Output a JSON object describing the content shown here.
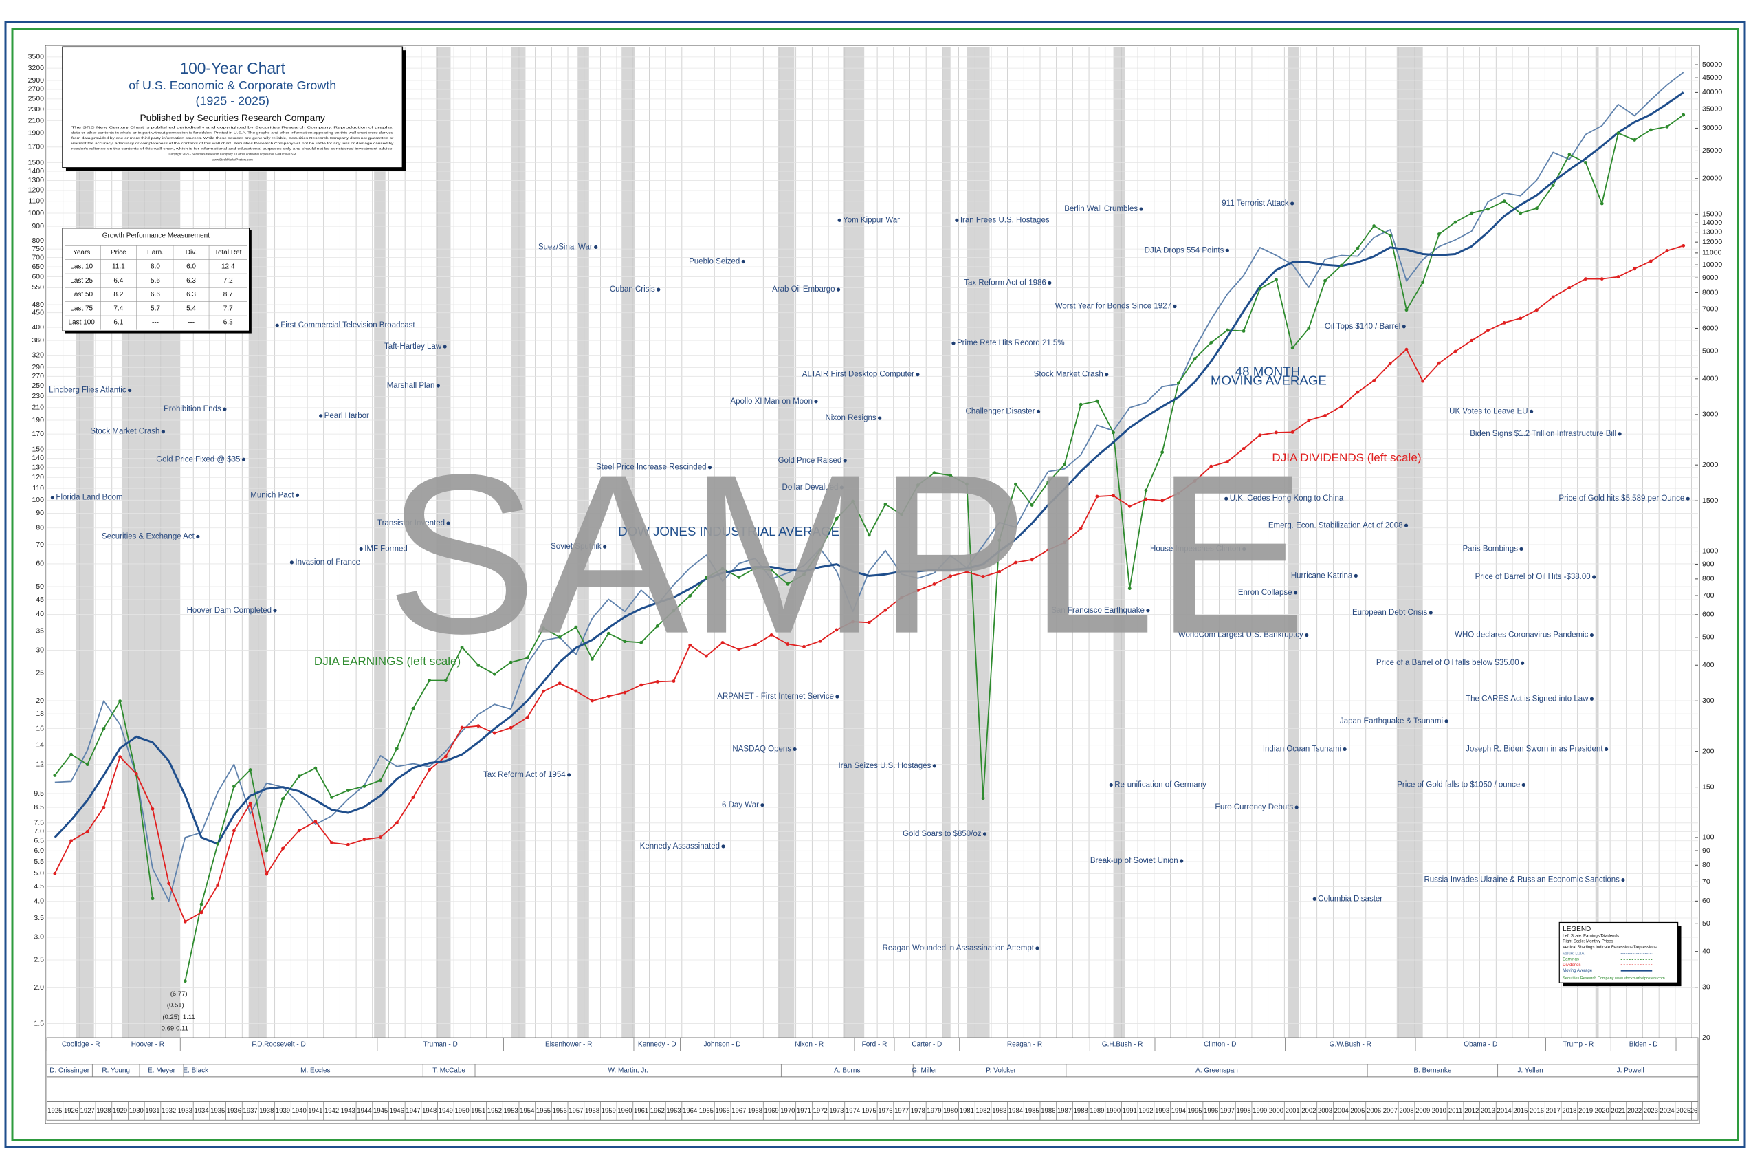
{
  "chart_data": {
    "type": "line",
    "title": "100-Year Chart",
    "subtitle": "of U.S. Economic & Corporate Growth",
    "period": "(1925 - 2025)",
    "publisher": "Published by Securities Research Company",
    "disclaimer": [
      "The SRC New Century Chart is published periodically and copyrighted by Securities Research Company. Reproduction of graphs,",
      "data or other contents in whole or in part without permission is forbidden. Printed in U.S.A. The graphs and other information appearing on this wall chart were derived",
      "from data provided by one or more third party information sources. While these sources are generally reliable, Securities Research Company does not guarantee or",
      "warrant the accuracy, adequacy or completeness of the contents of this wall chart. Securities Research Company will not be liable for any loss or damage caused by",
      "reader's reliance on the contents of this wall chart, which is for informational and educational purposes only and should not be considered investment advice.",
      "Copyright 2025 - Securities Research Company. To order additional copies call 1-800-509-0534",
      "www.StockMarketPosters.com"
    ],
    "watermark": "SAMPLE",
    "x": [
      1925,
      1926,
      1927,
      1928,
      1929,
      1930,
      1931,
      1932,
      1933,
      1934,
      1935,
      1936,
      1937,
      1938,
      1939,
      1940,
      1941,
      1942,
      1943,
      1944,
      1945,
      1946,
      1947,
      1948,
      1949,
      1950,
      1951,
      1952,
      1953,
      1954,
      1955,
      1956,
      1957,
      1958,
      1959,
      1960,
      1961,
      1962,
      1963,
      1964,
      1965,
      1966,
      1967,
      1968,
      1969,
      1970,
      1971,
      1972,
      1973,
      1974,
      1975,
      1976,
      1977,
      1978,
      1979,
      1980,
      1981,
      1982,
      1983,
      1984,
      1985,
      1986,
      1987,
      1988,
      1989,
      1990,
      1991,
      1992,
      1993,
      1994,
      1995,
      1996,
      1997,
      1998,
      1999,
      2000,
      2001,
      2002,
      2003,
      2004,
      2005,
      2006,
      2007,
      2008,
      2009,
      2010,
      2011,
      2012,
      2013,
      2014,
      2015,
      2016,
      2017,
      2018,
      2019,
      2020,
      2021,
      2022,
      2023,
      2024,
      2025
    ],
    "series": [
      {
        "name": "Value: DJIA",
        "color": "#5f82ad",
        "axis": "y2",
        "values": [
          156,
          157,
          202,
          300,
          248,
          165,
          78,
          60,
          100,
          104,
          144,
          180,
          121,
          155,
          150,
          131,
          111,
          119,
          136,
          152,
          193,
          177,
          181,
          177,
          200,
          235,
          269,
          292,
          281,
          404,
          488,
          500,
          436,
          584,
          679,
          616,
          731,
          652,
          763,
          874,
          969,
          786,
          905,
          944,
          800,
          839,
          890,
          1020,
          851,
          616,
          852,
          1005,
          831,
          805,
          839,
          964,
          875,
          1047,
          1259,
          1212,
          1547,
          1896,
          1939,
          2169,
          2753,
          2634,
          3169,
          3301,
          3754,
          3834,
          5117,
          6448,
          7908,
          9181,
          11497,
          10787,
          10021,
          8342,
          10454,
          10783,
          10718,
          12463,
          13265,
          8776,
          10428,
          11578,
          12218,
          13104,
          16577,
          17823,
          17425,
          19763,
          24719,
          23327,
          28538,
          30606,
          36338,
          33147,
          37690,
          42544,
          47000
        ]
      },
      {
        "name": "Earnings",
        "color": "#2e8b2e",
        "values": [
          11,
          13,
          12,
          16,
          19.94,
          11.02,
          4.09,
          null,
          2.11,
          3.91,
          6.34,
          10.07,
          11.49,
          6.01,
          9.11,
          10.92,
          11.64,
          9.22,
          9.74,
          10.07,
          10.56,
          13.63,
          18.8,
          23.54,
          23.54,
          30.7,
          26.59,
          24.78,
          27.23,
          28.18,
          35.78,
          33.34,
          36.08,
          27.95,
          34.31,
          32.21,
          31.91,
          36.43,
          41.21,
          46.43,
          53.67,
          57.68,
          53.87,
          57.89,
          57.02,
          51.02,
          55.09,
          67.11,
          86.17,
          99.04,
          75.66,
          96.72,
          89.1,
          112.79,
          124.46,
          121.86,
          113.71,
          9.15,
          72.45,
          113.58,
          96.11,
          115.59,
          133.05,
          215.46,
          221.48,
          172.05,
          49.27,
          108.25,
          146.84,
          256.13,
          311.02,
          353.88,
          391.29,
          388.42,
          545.29,
          586.3,
          339.56,
          397.11,
          581.46,
          657.23,
          754.21,
          902.67,
          836.19,
          460,
          574,
          845,
          930,
          1000,
          1033,
          1100,
          1000,
          1040,
          1250,
          1600,
          1500,
          1080,
          1900,
          1800,
          1950,
          2000,
          2200
        ]
      },
      {
        "name": "Dividends",
        "color": "#e02020",
        "values": [
          5,
          6.5,
          7,
          8.5,
          12.75,
          11.13,
          8.4,
          4.62,
          3.4,
          3.66,
          4.55,
          7.05,
          8.78,
          4.98,
          6.11,
          7.06,
          7.59,
          6.4,
          6.3,
          6.57,
          6.69,
          7.5,
          9.21,
          11.5,
          12.79,
          16.13,
          16.34,
          15.43,
          16.11,
          17.47,
          21.58,
          22.99,
          21.61,
          20,
          20.74,
          21.36,
          22.71,
          23.3,
          23.41,
          31.24,
          28.61,
          31.89,
          30.19,
          31.34,
          33.9,
          31.53,
          30.86,
          32.27,
          35.33,
          37.72,
          37.46,
          41.4,
          45.84,
          48.52,
          50.98,
          54.36,
          56.22,
          54.14,
          56.33,
          60.63,
          62.03,
          67.04,
          71.2,
          79.53,
          103,
          103.7,
          95.18,
          100.72,
          99.66,
          105.66,
          116.56,
          131.14,
          136.1,
          151.13,
          168.52,
          172.08,
          172.61,
          189.68,
          197,
          212,
          238,
          261,
          299,
          335,
          260,
          300,
          330,
          360,
          390,
          415,
          430,
          460,
          510,
          550,
          590,
          590,
          600,
          640,
          680,
          740,
          770
        ]
      },
      {
        "name": "Moving Average",
        "color": "#1f4e8c",
        "axis": "y2",
        "values": [
          100,
          115,
          135,
          165,
          205,
          225,
          215,
          185,
          140,
          100,
          95,
          120,
          140,
          148,
          150,
          145,
          135,
          125,
          122,
          128,
          140,
          160,
          175,
          182,
          185,
          195,
          215,
          240,
          265,
          300,
          350,
          410,
          460,
          490,
          540,
          590,
          630,
          660,
          690,
          740,
          800,
          840,
          860,
          880,
          880,
          860,
          850,
          880,
          900,
          850,
          820,
          830,
          850,
          850,
          860,
          860,
          870,
          900,
          1000,
          1100,
          1250,
          1450,
          1650,
          1900,
          2150,
          2400,
          2700,
          2950,
          3200,
          3450,
          3900,
          4600,
          5600,
          6900,
          8400,
          9600,
          10200,
          10200,
          10000,
          9900,
          10200,
          10700,
          11500,
          11300,
          10900,
          10800,
          10900,
          11600,
          13000,
          14800,
          16200,
          17500,
          19500,
          21500,
          23500,
          26000,
          29000,
          31500,
          33500,
          36500,
          40000
        ]
      }
    ],
    "log_scale": true,
    "grid": true,
    "xlim": [
      1925,
      2026.4
    ],
    "ylim": [
      1.34,
      3800
    ],
    "y2lim": [
      20,
      57750
    ],
    "yticks": [
      1.5,
      {
        "value": 2,
        "label": "2.0"
      },
      2.5,
      {
        "value": 3,
        "label": "3.0"
      },
      3.5,
      {
        "value": 4,
        "label": "4.0"
      },
      4.5,
      {
        "value": 5,
        "label": "5.0"
      },
      5.5,
      {
        "value": 6,
        "label": "6.0"
      },
      6.5,
      {
        "value": 7,
        "label": "7.0"
      },
      7.5,
      8.5,
      9.5,
      12,
      14,
      16,
      18,
      20,
      25,
      30,
      35,
      40,
      45,
      50,
      60,
      70,
      80,
      90,
      100,
      110,
      120,
      130,
      140,
      150,
      170,
      190,
      210,
      230,
      250,
      270,
      290,
      320,
      360,
      400,
      450,
      480,
      550,
      600,
      650,
      700,
      750,
      800,
      900,
      1000,
      1100,
      1200,
      1300,
      1400,
      1500,
      1700,
      1900,
      2100,
      2300,
      2500,
      2700,
      2900,
      3200,
      3500
    ],
    "y2ticks": [
      20,
      30,
      40,
      50,
      60,
      70,
      80,
      90,
      100,
      150,
      200,
      300,
      400,
      500,
      600,
      700,
      800,
      900,
      1000,
      1500,
      2000,
      3000,
      4000,
      5000,
      6000,
      7000,
      8000,
      9000,
      10000,
      11000,
      12000,
      13000,
      14000,
      15000,
      20000,
      25000,
      30000,
      35000,
      40000,
      45000,
      50000
    ],
    "xticks": [
      1925,
      1926,
      1927,
      1928,
      1929,
      1930,
      1931,
      1932,
      1933,
      1934,
      1935,
      1936,
      1937,
      1938,
      1939,
      1940,
      1941,
      1942,
      1943,
      1944,
      1945,
      1946,
      1947,
      1948,
      1949,
      1950,
      1951,
      1952,
      1953,
      1954,
      1955,
      1956,
      1957,
      1958,
      1959,
      1960,
      1961,
      1962,
      1963,
      1964,
      1965,
      1966,
      1967,
      1968,
      1969,
      1970,
      1971,
      1972,
      1973,
      1974,
      1975,
      1976,
      1977,
      1978,
      1979,
      1980,
      1981,
      1982,
      1983,
      1984,
      1985,
      1986,
      1987,
      1988,
      1989,
      1990,
      1991,
      1992,
      1993,
      1994,
      1995,
      1996,
      1997,
      1998,
      1999,
      2000,
      2001,
      2002,
      2003,
      2004,
      2005,
      2006,
      2007,
      2008,
      2009,
      2010,
      2011,
      2012,
      2013,
      2014,
      2015,
      2016,
      2017,
      2018,
      2019,
      2020,
      2021,
      2022,
      2023,
      2024,
      2025,
      {
        "value": 2026,
        "label": "26"
      }
    ],
    "recessions": [
      [
        1926.8,
        1927.9
      ],
      [
        1929.6,
        1933.2
      ],
      [
        1937.4,
        1938.5
      ],
      [
        1945.1,
        1945.8
      ],
      [
        1948.9,
        1949.8
      ],
      [
        1953.5,
        1954.4
      ],
      [
        1957.6,
        1958.3
      ],
      [
        1960.3,
        1961.1
      ],
      [
        1969.9,
        1970.9
      ],
      [
        1973.9,
        1975.2
      ],
      [
        1980.0,
        1980.5
      ],
      [
        1981.5,
        1982.9
      ],
      [
        1990.5,
        1991.2
      ],
      [
        2001.2,
        2001.9
      ],
      [
        2007.9,
        2009.5
      ],
      [
        2020.1,
        2020.3
      ]
    ],
    "labels": [
      "48 MONTH",
      "MOVING AVERAGE",
      "DJIA DIVIDENDS (left scale)",
      "DJIA EARNINGS (left scale)",
      "DOW JONES INDUSTRIAL AVERAGE"
    ],
    "notes": [
      "(6.77)",
      "(0.51)",
      "(0.25)",
      "1.11",
      "0.69",
      "0.11"
    ],
    "annotations": [
      "Florida Land Boom",
      "Lindberg Flies Atlantic",
      "Stock Market Crash",
      "Prohibition Ends",
      "Gold Price Fixed @ $35",
      "Securities & Exchange Act",
      "Hoover Dam Completed",
      "Munich Pact",
      "First Commercial Television Broadcast",
      "Pearl Harbor",
      "Invasion of France",
      "IMF Formed",
      "Taft-Hartley Law",
      "Marshall Plan",
      "Transistor Invented",
      "Suez/Sinai War",
      "Soviet Sputnik",
      "Tax Reform Act of 1954",
      "Cuban Crisis",
      "Pueblo Seized",
      "Steel Price Increase Rescinded",
      "Kennedy Assassinated",
      "6 Day War",
      "ARPANET - First Internet Service",
      "NASDAQ Opens",
      "Apollo XI Man on Moon",
      "Arab Oil Embargo",
      "Yom Kippur War",
      "Gold Price Raised",
      "Dollar Devalued",
      "ALTAIR First Desktop Computer",
      "Nixon Resigns",
      "Iran Seizes U.S. Hostages",
      "Gold Soars to $850/oz",
      "Reagan Wounded in Assassination Attempt",
      "Iran Frees U.S. Hostages",
      "Tax Reform Act of 1986",
      "Prime Rate Hits Record 21.5%",
      "Challenger Disaster",
      "Stock Market Crash",
      "Worst Year for Bonds Since 1927",
      "Berlin Wall Crumbles",
      "San Francisco Earthquake",
      "Re-unification of Germany",
      "Break-up of Soviet Union",
      "WorldCom Largest U.S. Bankruptcy",
      "DJIA Drops 554 Points",
      "911 Terrorist Attack",
      "U.K. Cedes Hong Kong to China",
      "House Impeaches Clinton",
      "Enron Collapse",
      "Euro Currency Debuts",
      "Hurricane Katrina",
      "Emerg. Econ. Stabilization Act of 2008",
      "Indian Ocean Tsunami",
      "Columbia Disaster",
      "Oil Tops $140 / Barrel",
      "European Debt Crisis",
      "Japan Earthquake & Tsunami",
      "Price of a Barrel of Oil falls below $35.00",
      "Price of Gold falls to $1050 / ounce",
      "Paris Bombings",
      "Price of Barrel of Oil Hits -$38.00",
      "WHO declares Coronavirus Pandemic",
      "The CARES Act is Signed into Law",
      "Joseph R. Biden Sworn in as President",
      "Russia Invades Ukraine & Russian Economic Sanctions",
      "UK Votes to Leave EU",
      "Biden Signs $1.2 Trillion Infrastructure Bill",
      "Price of Gold hits $5,589 per Ounce"
    ],
    "presidents": [
      "Coolidge - R",
      "Hoover - R",
      "F.D.Roosevelt - D",
      "Truman - D",
      "Eisenhower - R",
      "Kennedy - D",
      "Johnson - D",
      "Nixon - R",
      "Ford - R",
      "Carter - D",
      "Reagan - R",
      "G.H.Bush - R",
      "Clinton - D",
      "G.W.Bush - R",
      "Obama - D",
      "Trump - R",
      "Biden - D"
    ],
    "fed_chairs": [
      "D. Crissinger",
      "R. Young",
      "E. Meyer",
      "E. Black",
      "M. Eccles",
      "T. McCabe",
      "W. Martin, Jr.",
      "A. Burns",
      "G. Miller",
      "P. Volcker",
      "A. Greenspan",
      "B. Bernanke",
      "J. Yellen",
      "J. Powell"
    ],
    "table": {
      "title": "Growth Performance Measurement",
      "columns": [
        "Years",
        "Price",
        "Earn.",
        "Div.",
        "Total Ret"
      ],
      "rows": [
        [
          "Last 10",
          "11.1",
          "8.0",
          "6.0",
          "12.4"
        ],
        [
          "Last 25",
          "6.4",
          "5.6",
          "6.3",
          "7.2"
        ],
        [
          "Last 50",
          "8.2",
          "6.6",
          "6.3",
          "8.7"
        ],
        [
          "Last 75",
          "7.4",
          "5.7",
          "5.4",
          "7.7"
        ],
        [
          "Last 100",
          "6.1",
          "---",
          "---",
          "6.3"
        ]
      ]
    },
    "legend": {
      "title": "LEGEND",
      "notes": [
        "Left Scale: Earnings/Dividends",
        "Right Scale: Monthly Prices",
        "Vertical Shadings Indicate Recessions/Depressions"
      ],
      "footer": "Securities Research Company www.stockmarketposters.com"
    }
  }
}
